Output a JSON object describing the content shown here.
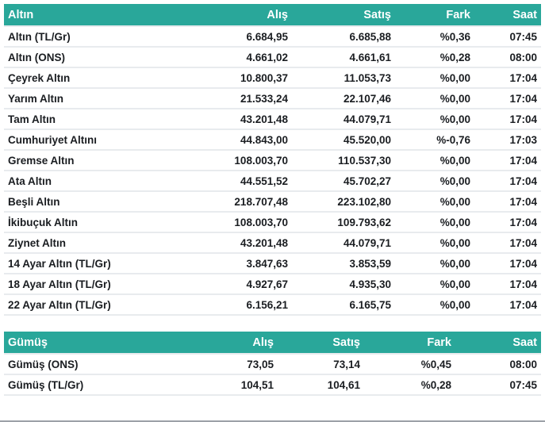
{
  "theme": {
    "header_bg": "#29a79a",
    "header_text": "#ffffff",
    "row_separator": "#e8ebee",
    "cell_text": "#1a1d21",
    "bottom_edge": "#9ca1a8"
  },
  "tables": [
    {
      "id": "gold",
      "columns": [
        "Altın",
        "Alış",
        "Satış",
        "Fark",
        "Saat"
      ],
      "rows": [
        {
          "name": "Altın (TL/Gr)",
          "buy": "6.684,95",
          "sell": "6.685,88",
          "change": "%0,36",
          "time": "07:45"
        },
        {
          "name": "Altın (ONS)",
          "buy": "4.661,02",
          "sell": "4.661,61",
          "change": "%0,28",
          "time": "08:00"
        },
        {
          "name": "Çeyrek Altın",
          "buy": "10.800,37",
          "sell": "11.053,73",
          "change": "%0,00",
          "time": "17:04"
        },
        {
          "name": "Yarım Altın",
          "buy": "21.533,24",
          "sell": "22.107,46",
          "change": "%0,00",
          "time": "17:04"
        },
        {
          "name": "Tam Altın",
          "buy": "43.201,48",
          "sell": "44.079,71",
          "change": "%0,00",
          "time": "17:04"
        },
        {
          "name": "Cumhuriyet Altını",
          "buy": "44.843,00",
          "sell": "45.520,00",
          "change": "%-0,76",
          "time": "17:03"
        },
        {
          "name": "Gremse Altın",
          "buy": "108.003,70",
          "sell": "110.537,30",
          "change": "%0,00",
          "time": "17:04"
        },
        {
          "name": "Ata Altın",
          "buy": "44.551,52",
          "sell": "45.702,27",
          "change": "%0,00",
          "time": "17:04"
        },
        {
          "name": "Beşli Altın",
          "buy": "218.707,48",
          "sell": "223.102,80",
          "change": "%0,00",
          "time": "17:04"
        },
        {
          "name": "İkibuçuk Altın",
          "buy": "108.003,70",
          "sell": "109.793,62",
          "change": "%0,00",
          "time": "17:04"
        },
        {
          "name": "Ziynet Altın",
          "buy": "43.201,48",
          "sell": "44.079,71",
          "change": "%0,00",
          "time": "17:04"
        },
        {
          "name": "14 Ayar Altın (TL/Gr)",
          "buy": "3.847,63",
          "sell": "3.853,59",
          "change": "%0,00",
          "time": "17:04"
        },
        {
          "name": "18 Ayar Altın (TL/Gr)",
          "buy": "4.927,67",
          "sell": "4.935,30",
          "change": "%0,00",
          "time": "17:04"
        },
        {
          "name": "22 Ayar Altın (TL/Gr)",
          "buy": "6.156,21",
          "sell": "6.165,75",
          "change": "%0,00",
          "time": "17:04"
        }
      ]
    },
    {
      "id": "silver",
      "columns": [
        "Gümüş",
        "Alış",
        "Satış",
        "Fark",
        "Saat"
      ],
      "rows": [
        {
          "name": "Gümüş (ONS)",
          "buy": "73,05",
          "sell": "73,14",
          "change": "%0,45",
          "time": "08:00"
        },
        {
          "name": "Gümüş (TL/Gr)",
          "buy": "104,51",
          "sell": "104,61",
          "change": "%0,28",
          "time": "07:45"
        }
      ]
    }
  ]
}
